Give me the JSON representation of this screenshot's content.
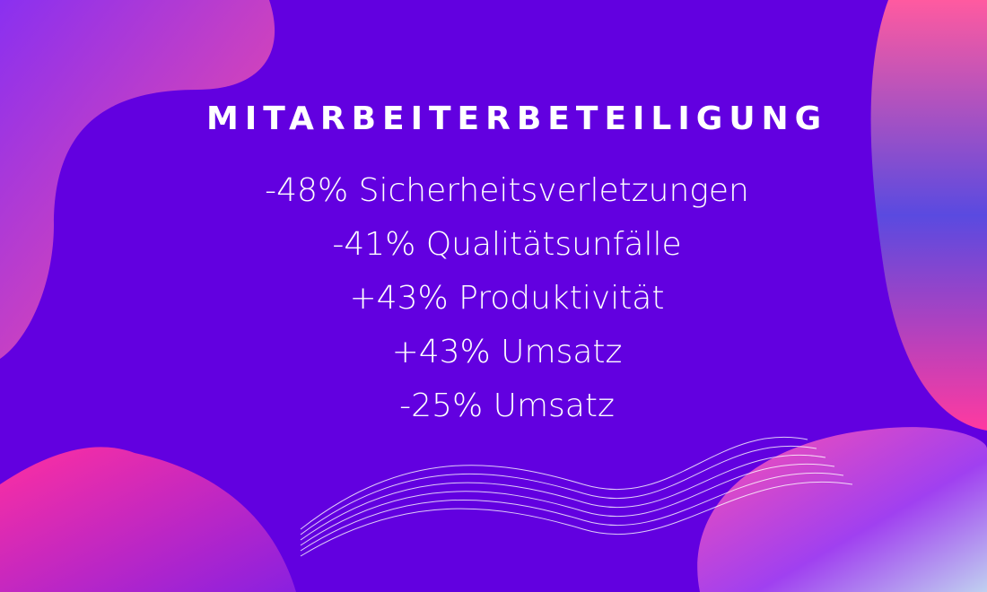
{
  "title": "MITARBEITERBETEILIGUNG",
  "lines": [
    "-48% Sicherheitsverletzungen",
    "-41% Qualitätsunfälle",
    "+43% Produktivität",
    "+43% Umsatz",
    "-25% Umsatz"
  ]
}
